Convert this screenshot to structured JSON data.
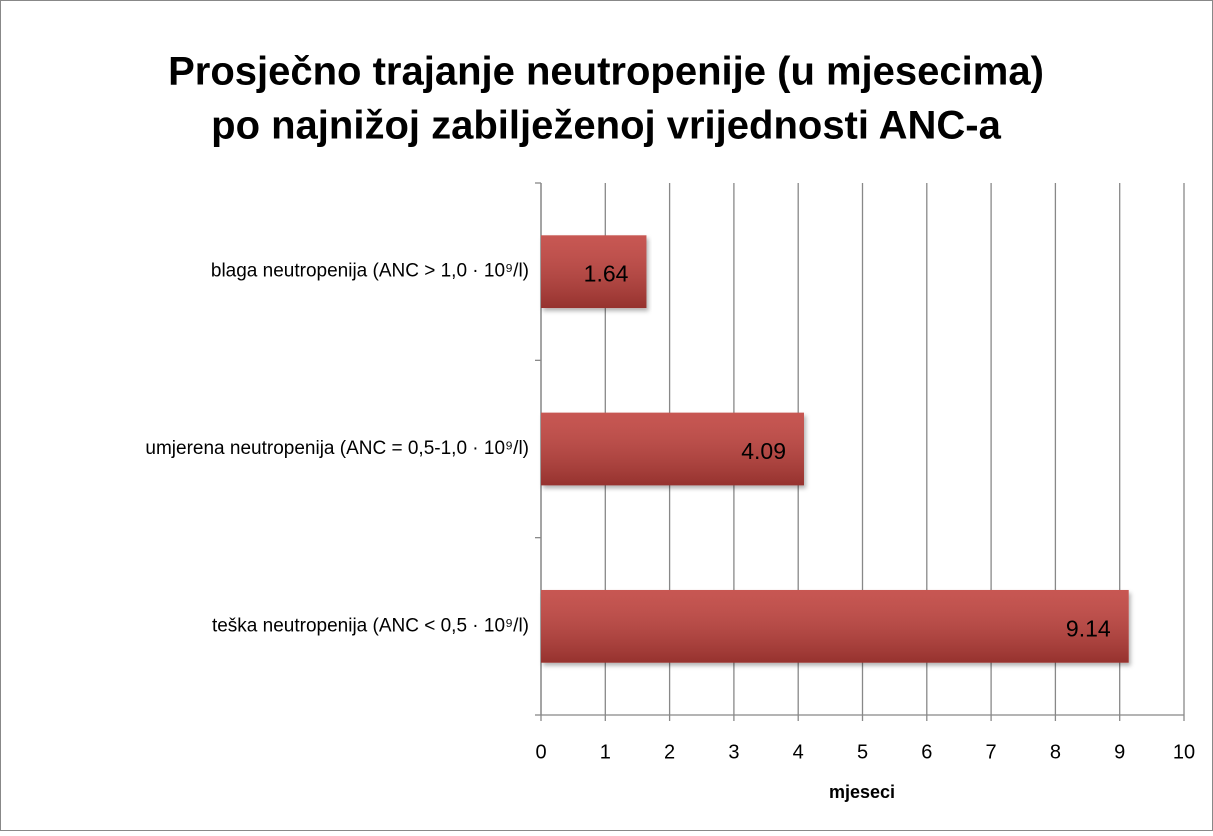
{
  "chart_data": {
    "type": "bar",
    "orientation": "horizontal",
    "title": [
      "Prosječno trajanje neutropenije (u mjesecima)",
      "po najnižoj zabilježenoj vrijednosti ANC-a"
    ],
    "categories": [
      "blaga neutropenija (ANC > 1,0 · 10⁹/l)",
      "umjerena neutropenija (ANC = 0,5-1,0 · 10⁹/l)",
      "teška neutropenija (ANC < 0,5 · 10⁹/l)"
    ],
    "values": [
      1.64,
      4.09,
      9.14
    ],
    "color": "#c0403a",
    "xlim": [
      0,
      10
    ],
    "xticks": [
      0,
      1,
      2,
      3,
      4,
      5,
      6,
      7,
      8,
      9,
      10
    ],
    "xlabel": "mjeseci",
    "grid": true
  }
}
